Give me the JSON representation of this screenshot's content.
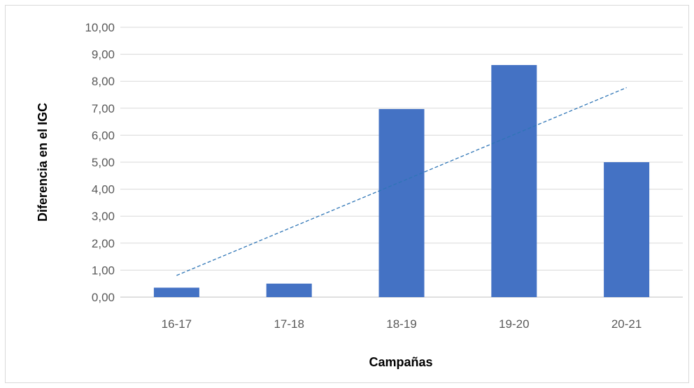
{
  "chart_data": {
    "type": "bar",
    "title": "",
    "xlabel": "Campañas",
    "ylabel": "Diferencia en el IGC",
    "categories": [
      "16-17",
      "17-18",
      "18-19",
      "19-20",
      "20-21"
    ],
    "values": [
      0.35,
      0.5,
      6.97,
      8.6,
      5.0
    ],
    "ylim": [
      0,
      10
    ],
    "ytick_labels": [
      "0,00",
      "1,00",
      "2,00",
      "3,00",
      "4,00",
      "5,00",
      "6,00",
      "7,00",
      "8,00",
      "9,00",
      "10,00"
    ],
    "grid": true,
    "legend": "none",
    "trendline": {
      "type": "linear",
      "style": "dashed"
    },
    "colors": {
      "bar": "#4472C4",
      "trend": "#2E75B6",
      "grid": "#D9D9D9",
      "axis_line": "#BFBFBF"
    }
  }
}
